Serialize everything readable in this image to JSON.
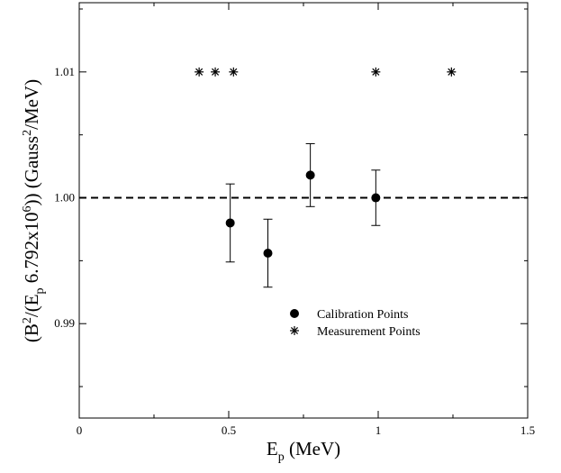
{
  "chart_data": {
    "type": "scatter",
    "xlim": [
      0,
      1.5
    ],
    "ylim": [
      0.9825,
      1.0155
    ],
    "x_ticks": [
      {
        "value": 0,
        "label": "0"
      },
      {
        "value": 0.5,
        "label": "0.5"
      },
      {
        "value": 1,
        "label": "1"
      },
      {
        "value": 1.5,
        "label": "1.5"
      }
    ],
    "y_ticks": [
      {
        "value": 0.99,
        "label": "0.99"
      },
      {
        "value": 1.0,
        "label": "1.00"
      },
      {
        "value": 1.01,
        "label": "1.01"
      }
    ],
    "xlabel": {
      "main": "E",
      "sub": "p",
      "rest": " (MeV)"
    },
    "ylabel": {
      "p1": "(B",
      "sup1": "2",
      "p2": "/(E",
      "sub1": "p",
      "p3": " 6.792x10",
      "sup2": "6",
      "p4": ")) (Gauss",
      "sup3": "2",
      "p5": "/MeV)"
    },
    "reference_line": {
      "y": 1.0,
      "style": "dashed"
    },
    "series": [
      {
        "name": "Calibration Points",
        "marker": "filled-circle",
        "points": [
          {
            "x": 0.505,
            "y": 0.998,
            "err": 0.0031
          },
          {
            "x": 0.631,
            "y": 0.9956,
            "err": 0.0027
          },
          {
            "x": 0.773,
            "y": 1.0018,
            "err": 0.0025
          },
          {
            "x": 0.992,
            "y": 1.0,
            "err": 0.0022
          }
        ]
      },
      {
        "name": "Measurement Points",
        "marker": "asterisk",
        "points": [
          {
            "x": 0.401,
            "y": 1.01
          },
          {
            "x": 0.455,
            "y": 1.01
          },
          {
            "x": 0.516,
            "y": 1.01
          },
          {
            "x": 0.992,
            "y": 1.01
          },
          {
            "x": 1.245,
            "y": 1.01
          }
        ]
      }
    ],
    "legend_position": "lower-right"
  }
}
